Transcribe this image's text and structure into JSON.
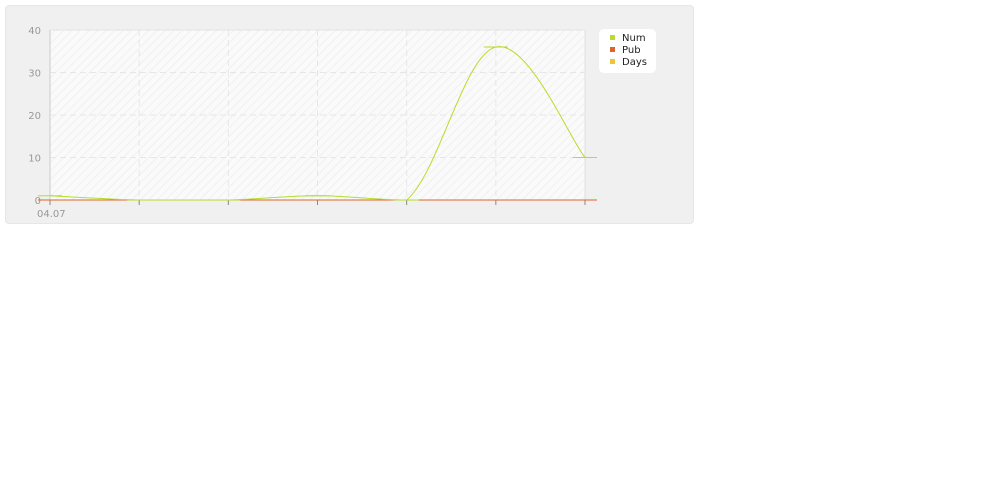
{
  "chart_data": {
    "type": "line",
    "title": "",
    "xlabel": "",
    "ylabel": "",
    "x_tick_labels": [
      "04.07",
      "",
      "",
      "",
      "",
      "",
      ""
    ],
    "x": [
      0,
      1,
      2,
      3,
      4,
      5,
      6
    ],
    "ylim": [
      0,
      40
    ],
    "y_ticks": [
      0,
      10,
      20,
      30,
      40
    ],
    "grid": true,
    "legend_position": "top-right",
    "series": [
      {
        "name": "Num",
        "color": "#b8dc2a",
        "values": [
          1,
          0,
          0,
          1,
          0,
          36,
          10
        ]
      },
      {
        "name": "Pub",
        "color": "#e0642a",
        "values": [
          0,
          0,
          0,
          0,
          0,
          0,
          0
        ]
      },
      {
        "name": "Days",
        "color": "#e8c834",
        "values": [
          0,
          0,
          0,
          0,
          0,
          0,
          0
        ]
      }
    ]
  }
}
